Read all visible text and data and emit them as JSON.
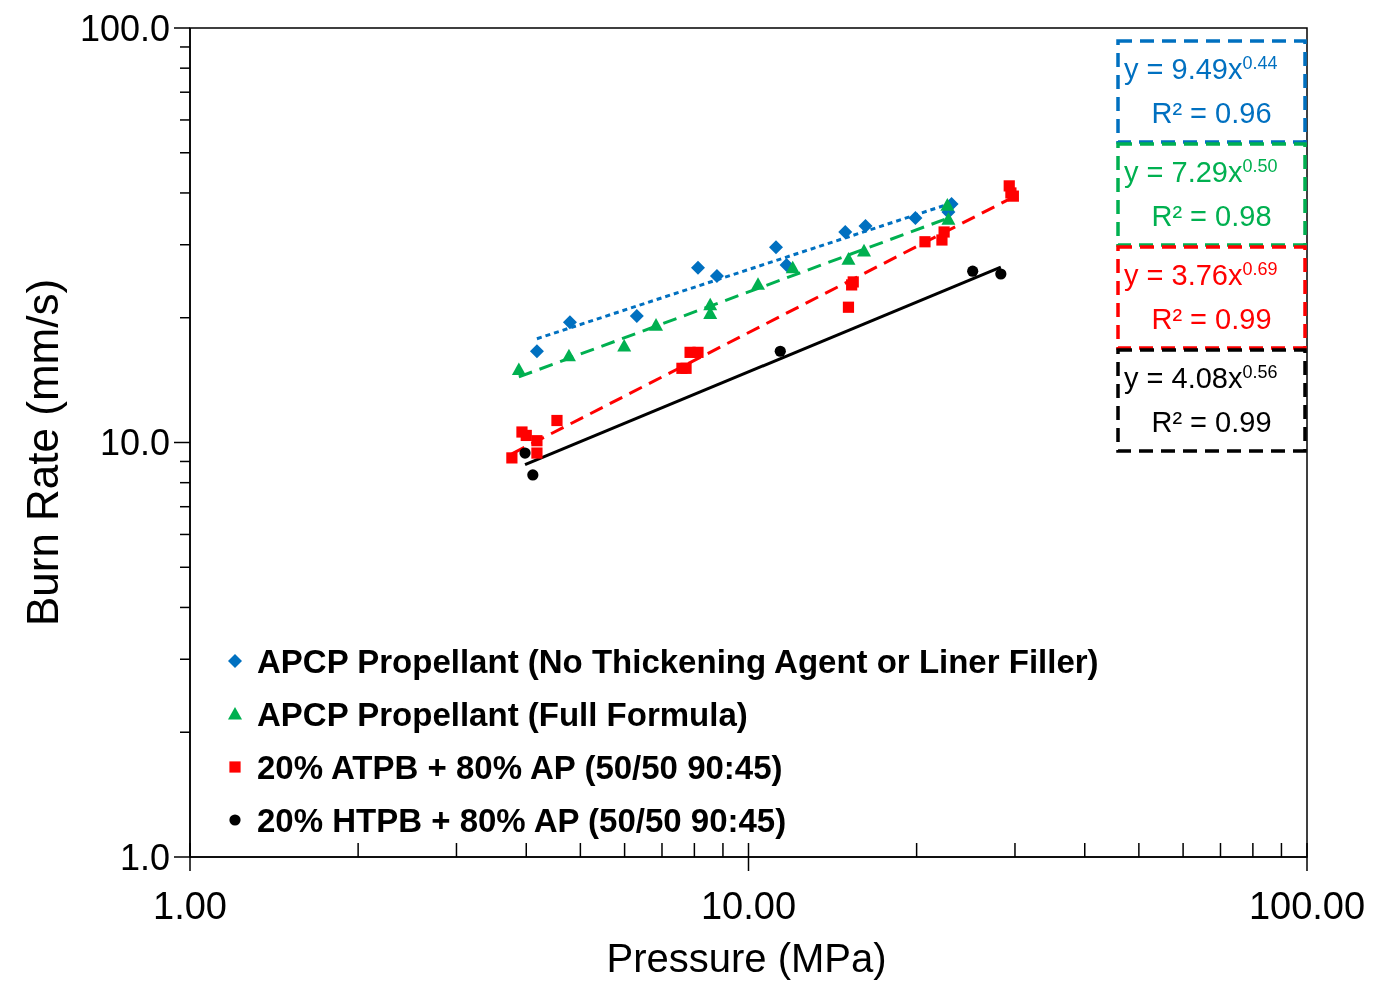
{
  "chart_data": {
    "type": "scatter",
    "xlabel": "Pressure (MPa)",
    "ylabel": "Burn Rate (mm/s)",
    "log": "xy",
    "xlim": [
      1,
      100
    ],
    "ylim": [
      1,
      100
    ],
    "xticks": [
      {
        "value": 1,
        "label": "1.00"
      },
      {
        "value": 2,
        "label": null
      },
      {
        "value": 3,
        "label": null
      },
      {
        "value": 4,
        "label": null
      },
      {
        "value": 5,
        "label": null
      },
      {
        "value": 6,
        "label": null
      },
      {
        "value": 7,
        "label": null
      },
      {
        "value": 8,
        "label": null
      },
      {
        "value": 9,
        "label": null
      },
      {
        "value": 10,
        "label": "10.00"
      },
      {
        "value": 20,
        "label": null
      },
      {
        "value": 30,
        "label": null
      },
      {
        "value": 40,
        "label": null
      },
      {
        "value": 50,
        "label": null
      },
      {
        "value": 60,
        "label": null
      },
      {
        "value": 70,
        "label": null
      },
      {
        "value": 80,
        "label": null
      },
      {
        "value": 90,
        "label": null
      },
      {
        "value": 100,
        "label": "100.00"
      }
    ],
    "yticks": [
      {
        "value": 1,
        "label": "1.0"
      },
      {
        "value": 2,
        "label": null
      },
      {
        "value": 3,
        "label": null
      },
      {
        "value": 4,
        "label": null
      },
      {
        "value": 5,
        "label": null
      },
      {
        "value": 6,
        "label": null
      },
      {
        "value": 7,
        "label": null
      },
      {
        "value": 8,
        "label": null
      },
      {
        "value": 9,
        "label": null
      },
      {
        "value": 10,
        "label": "10.0"
      },
      {
        "value": 20,
        "label": null
      },
      {
        "value": 30,
        "label": null
      },
      {
        "value": 40,
        "label": null
      },
      {
        "value": 50,
        "label": null
      },
      {
        "value": 60,
        "label": null
      },
      {
        "value": 70,
        "label": null
      },
      {
        "value": 80,
        "label": null
      },
      {
        "value": 90,
        "label": null
      },
      {
        "value": 100,
        "label": "100.0"
      }
    ],
    "grid": false,
    "legend": "bottom left",
    "series": [
      {
        "name": "APCP Propellant (No Thickening Agent or Liner Filler)",
        "color": "#0070c0",
        "marker": "diamond",
        "x": [
          4.18,
          4.79,
          6.31,
          8.12,
          8.78,
          11.2,
          11.7,
          14.9,
          16.2,
          19.9,
          22.8,
          23.1
        ],
        "values": [
          16.6,
          19.5,
          20.2,
          26.4,
          25.2,
          29.6,
          26.8,
          32.2,
          33.3,
          34.8,
          36.0,
          37.6
        ]
      },
      {
        "name": "APCP Propellant (Full Formula)",
        "color": "#00b050",
        "marker": "triangle",
        "x": [
          3.88,
          4.77,
          5.99,
          6.83,
          8.54,
          8.54,
          10.4,
          12.0,
          15.1,
          16.1,
          22.7,
          22.8
        ],
        "values": [
          15.0,
          16.2,
          17.1,
          19.2,
          21.5,
          20.5,
          24.1,
          26.4,
          27.7,
          29.0,
          37.4,
          34.6
        ]
      },
      {
        "name": "20% ATPB + 80% AP (50/50 90:45)",
        "color": "#ff0000",
        "marker": "square",
        "x": [
          3.77,
          3.93,
          4.0,
          4.18,
          4.18,
          4.54,
          7.6,
          7.86,
          7.73,
          8.12,
          15.1,
          15.3,
          15.4,
          20.7,
          22.2,
          22.4,
          29.3,
          29.5,
          29.8
        ],
        "values": [
          9.18,
          10.6,
          10.4,
          10.1,
          9.43,
          11.3,
          15.1,
          16.5,
          15.1,
          16.5,
          21.2,
          24.0,
          24.4,
          30.5,
          30.8,
          32.2,
          41.6,
          40.0,
          39.3
        ]
      },
      {
        "name": "20% HTPB + 80% AP (50/50 90:45)",
        "color": "#000000",
        "marker": "circle",
        "x": [
          3.98,
          4.11,
          11.4,
          25.2,
          28.3
        ],
        "values": [
          9.43,
          8.35,
          16.6,
          25.9,
          25.5
        ]
      },
      {
        "type": "line",
        "color": "#0070c0",
        "line_style": "dotted",
        "x": [
          4.18,
          23.1
        ],
        "values": [
          17.8,
          37.8
        ]
      },
      {
        "type": "line",
        "color": "#00b050",
        "line_style": "dashed",
        "x": [
          3.88,
          22.8
        ],
        "values": [
          14.4,
          34.8
        ]
      },
      {
        "type": "line",
        "color": "#ff0000",
        "line_style": "dashed",
        "x": [
          3.77,
          29.8
        ],
        "values": [
          9.39,
          39.1
        ]
      },
      {
        "type": "line",
        "color": "#000000",
        "line_style": "solid",
        "x": [
          3.98,
          28.3
        ],
        "values": [
          8.84,
          26.5
        ]
      }
    ],
    "annotations": [
      "y = 9.49x$^{0.44}$\nR² = 0.96",
      "y = 7.29x$^{0.50}$\nR² = 0.98",
      "y = 3.76x$^{0.69}$\nR² = 0.99",
      "y = 4.08x$^{0.56}$\nR² = 0.99"
    ]
  }
}
